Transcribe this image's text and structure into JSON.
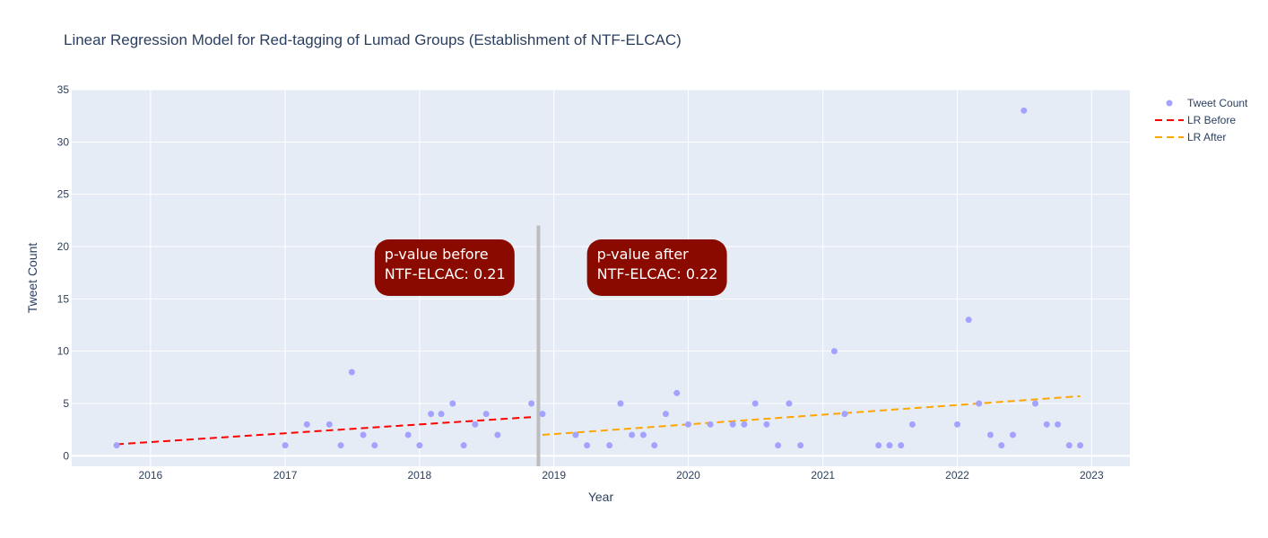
{
  "chart_data": {
    "type": "scatter",
    "title": "Linear Regression Model for Red-tagging of Lumad Groups (Establishment of NTF-ELCAC)",
    "xlabel": "Year",
    "ylabel": "Tweet Count",
    "xlim": [
      "2015-06-01",
      "2023-04-15"
    ],
    "ylim": [
      -1,
      35
    ],
    "x_ticks": [
      "2016",
      "2017",
      "2018",
      "2019",
      "2020",
      "2021",
      "2022",
      "2023"
    ],
    "y_ticks": [
      0,
      5,
      10,
      15,
      20,
      25,
      30,
      35
    ],
    "grid": true,
    "legend": "top-right",
    "series": [
      {
        "name": "Tweet Count",
        "mode": "markers",
        "color": "#a3a3ff",
        "points": [
          [
            "2015-10-01",
            1
          ],
          [
            "2017-01-01",
            1
          ],
          [
            "2017-03-01",
            3
          ],
          [
            "2017-05-01",
            3
          ],
          [
            "2017-06-01",
            1
          ],
          [
            "2017-07-01",
            8
          ],
          [
            "2017-08-01",
            2
          ],
          [
            "2017-09-01",
            1
          ],
          [
            "2017-12-01",
            2
          ],
          [
            "2018-01-01",
            1
          ],
          [
            "2018-02-01",
            4
          ],
          [
            "2018-03-01",
            4
          ],
          [
            "2018-04-01",
            5
          ],
          [
            "2018-05-01",
            1
          ],
          [
            "2018-06-01",
            3
          ],
          [
            "2018-07-01",
            4
          ],
          [
            "2018-08-01",
            2
          ],
          [
            "2018-11-01",
            5
          ],
          [
            "2018-12-01",
            4
          ],
          [
            "2019-03-01",
            2
          ],
          [
            "2019-04-01",
            1
          ],
          [
            "2019-06-01",
            1
          ],
          [
            "2019-07-01",
            5
          ],
          [
            "2019-08-01",
            2
          ],
          [
            "2019-09-01",
            2
          ],
          [
            "2019-10-01",
            1
          ],
          [
            "2019-11-01",
            4
          ],
          [
            "2019-12-01",
            6
          ],
          [
            "2020-01-01",
            3
          ],
          [
            "2020-03-01",
            3
          ],
          [
            "2020-05-01",
            3
          ],
          [
            "2020-06-01",
            3
          ],
          [
            "2020-07-01",
            5
          ],
          [
            "2020-08-01",
            3
          ],
          [
            "2020-09-01",
            1
          ],
          [
            "2020-10-01",
            5
          ],
          [
            "2020-11-01",
            1
          ],
          [
            "2021-02-01",
            10
          ],
          [
            "2021-03-01",
            4
          ],
          [
            "2021-06-01",
            1
          ],
          [
            "2021-07-01",
            1
          ],
          [
            "2021-08-01",
            1
          ],
          [
            "2021-09-01",
            3
          ],
          [
            "2022-01-01",
            3
          ],
          [
            "2022-02-01",
            13
          ],
          [
            "2022-03-01",
            5
          ],
          [
            "2022-04-01",
            2
          ],
          [
            "2022-05-01",
            1
          ],
          [
            "2022-06-01",
            2
          ],
          [
            "2022-07-01",
            33
          ],
          [
            "2022-08-01",
            5
          ],
          [
            "2022-09-01",
            3
          ],
          [
            "2022-10-01",
            3
          ],
          [
            "2022-11-01",
            1
          ],
          [
            "2022-12-01",
            1
          ]
        ]
      },
      {
        "name": "LR Before",
        "mode": "dashed-line",
        "color": "#ff0000",
        "points": [
          [
            "2015-10-01",
            1.1
          ],
          [
            "2018-11-01",
            3.7
          ]
        ]
      },
      {
        "name": "LR After",
        "mode": "dashed-line",
        "color": "#ffa500",
        "points": [
          [
            "2018-12-01",
            2.0
          ],
          [
            "2022-12-01",
            5.7
          ]
        ]
      }
    ],
    "divider": {
      "x": "2018-11-20",
      "y_range": [
        -1,
        22
      ],
      "color": "#bdbdbd"
    },
    "annotations": [
      {
        "lines": [
          "p-value before",
          "NTF-ELCAC: 0.21"
        ],
        "anchor_x": "2017-09-01",
        "anchor_y": 20,
        "color": "#8b0a00"
      },
      {
        "lines": [
          "p-value after",
          "NTF-ELCAC: 0.22"
        ],
        "anchor_x": "2019-04-01",
        "anchor_y": 20,
        "color": "#8b0a00"
      }
    ]
  }
}
